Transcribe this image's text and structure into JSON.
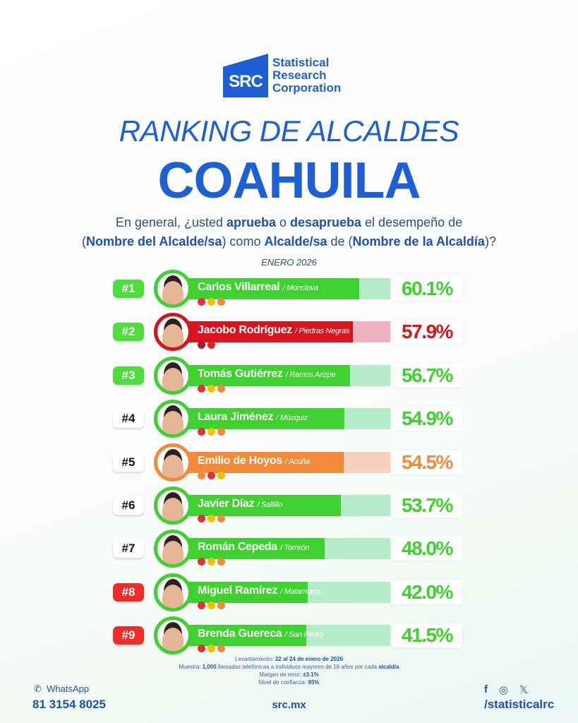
{
  "brand": {
    "logo_mark": "SRC",
    "name_lines": [
      "Statistical",
      "Research",
      "Corporation"
    ]
  },
  "title": "RANKING DE ALCALDES",
  "state": "COAHUILA",
  "question": {
    "parts": [
      "En general, ¿usted ",
      "aprueba",
      " o ",
      "desaprueba",
      " el desempeño de",
      "(",
      "Nombre del Alcalde/sa",
      ") como ",
      "Alcalde/sa",
      " de (",
      "Nombre de la Alcaldía",
      ")?"
    ]
  },
  "month": "ENERO 2026",
  "colors": {
    "green": "#3ed12f",
    "green_light": "#b3ecc6",
    "red": "#d8141e",
    "red_light": "#f1b3c4",
    "orange": "#f38a3a",
    "orange_light": "#f8d2bd",
    "blue": "#1f5fd6",
    "rank_red": "#ef2b2b",
    "rank_green": "#4fdc3c"
  },
  "ranking": [
    {
      "rank": "#1",
      "name": "Carlos Villarreal",
      "city": "/ Monclova",
      "value": 60.1,
      "label": "60.1%",
      "color": "green",
      "rank_style": "green",
      "parties": [
        "pri",
        "prd",
        "udc"
      ]
    },
    {
      "rank": "#2",
      "name": "Jacobo Rodríguez",
      "city": "/ Piedras Negras",
      "value": 57.9,
      "label": "57.9%",
      "color": "red",
      "rank_style": "green",
      "parties": [
        "morena",
        "pt"
      ]
    },
    {
      "rank": "#3",
      "name": "Tomás Gutiérrez",
      "city": "/ Ramos Arizpe",
      "value": 56.7,
      "label": "56.7%",
      "color": "green",
      "rank_style": "green",
      "parties": [
        "pri",
        "prd",
        "udc"
      ]
    },
    {
      "rank": "#4",
      "name": "Laura Jiménez",
      "city": "/ Múzquiz",
      "value": 54.9,
      "label": "54.9%",
      "color": "green",
      "rank_style": "white",
      "parties": [
        "pri",
        "prd",
        "udc"
      ]
    },
    {
      "rank": "#5",
      "name": "Emilio de Hoyos",
      "city": "/ Acuña",
      "value": 54.5,
      "label": "54.5%",
      "color": "orange",
      "rank_style": "white",
      "parties": [
        "udc",
        "pri",
        "prd"
      ]
    },
    {
      "rank": "#6",
      "name": "Javier Díaz",
      "city": "/ Saltillo",
      "value": 53.7,
      "label": "53.7%",
      "color": "green",
      "rank_style": "white",
      "parties": [
        "pri",
        "prd",
        "udc"
      ]
    },
    {
      "rank": "#7",
      "name": "Román Cepeda",
      "city": "/ Torreón",
      "value": 48.0,
      "label": "48.0%",
      "color": "green",
      "rank_style": "white",
      "parties": [
        "pri",
        "prd",
        "udc"
      ]
    },
    {
      "rank": "#8",
      "name": "Miguel Ramírez",
      "city": "/ Matamoros",
      "value": 42.0,
      "label": "42.0%",
      "color": "green",
      "rank_style": "red",
      "parties": [
        "pri",
        "prd",
        "udc"
      ]
    },
    {
      "rank": "#9",
      "name": "Brenda Guereca",
      "city": "/ San Pedro",
      "value": 41.5,
      "label": "41.5%",
      "color": "green",
      "rank_style": "red",
      "parties": [
        "pri",
        "prd",
        "udc"
      ]
    }
  ],
  "methodology": [
    {
      "label": "Levantamiento: ",
      "value": "22 al 24 de enero de 2026",
      "after": ""
    },
    {
      "label": "Muestra: ",
      "value": "1,000",
      "after": " llamadas telefónicas a individuos mayores de 18 años por cada ",
      "value2": "alcaldía"
    },
    {
      "label": "Margen de error: ",
      "value": "±3.1%",
      "after": ""
    },
    {
      "label": "Nivel de confianza: ",
      "value": "95%",
      "after": ""
    }
  ],
  "footer": {
    "whatsapp_label": "WhatsApp",
    "phone": "81 3154 8025",
    "site": "src.mx",
    "handle": "/statisticalrc"
  }
}
